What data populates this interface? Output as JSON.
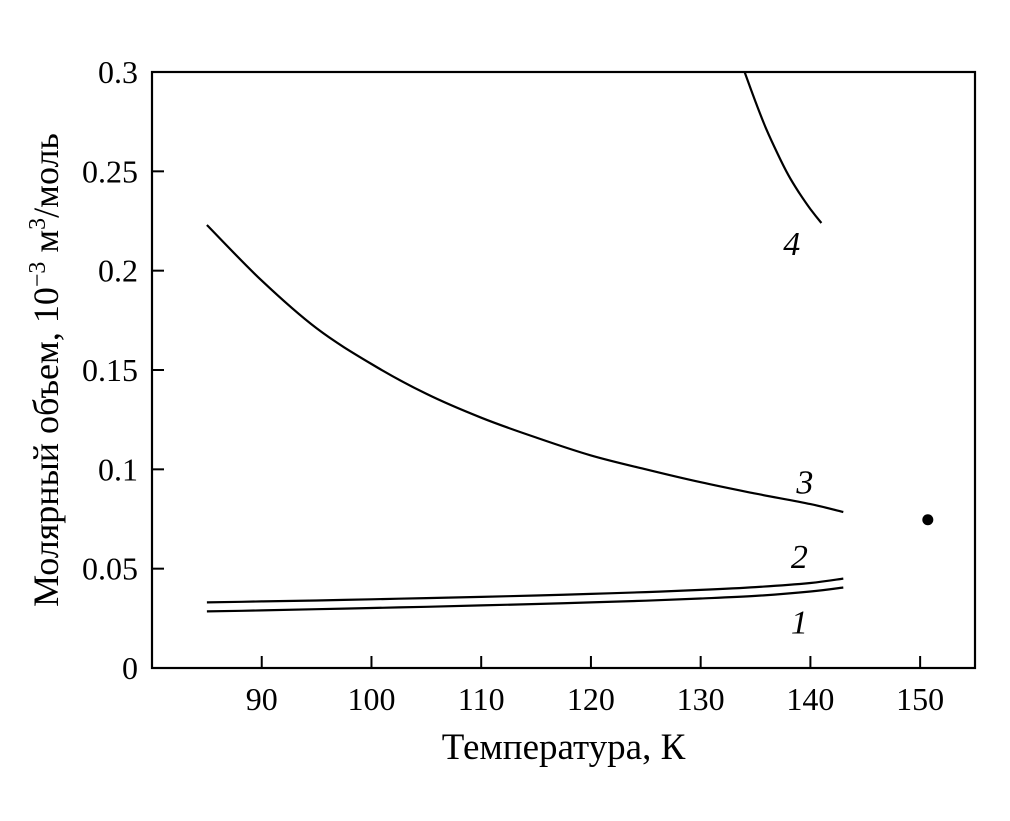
{
  "chart_data": {
    "type": "line",
    "title": "",
    "xlabel": "Температура, К",
    "ylabel": "Молярный объем, 10⁻³ м³/моль",
    "ylabel_parts": {
      "prefix": "Молярный объем, 10",
      "exponent": "−3",
      "unit": " м",
      "unit_exponent": "3",
      "suffix": "/моль"
    },
    "xlim": [
      80,
      155
    ],
    "ylim": [
      0,
      0.3
    ],
    "xticks": [
      90,
      100,
      110,
      120,
      130,
      140,
      150
    ],
    "xtick_labels": [
      "90",
      "100",
      "110",
      "120",
      "130",
      "140",
      "150"
    ],
    "yticks": [
      0,
      0.05,
      0.1,
      0.15,
      0.2,
      0.25,
      0.3
    ],
    "ytick_labels": [
      "0",
      "0.05",
      "0.1",
      "0.15",
      "0.2",
      "0.25",
      "0.3"
    ],
    "grid": false,
    "series": [
      {
        "name": "1",
        "label": "1",
        "x": [
          85,
          90,
          95,
          100,
          105,
          110,
          115,
          120,
          125,
          130,
          135,
          140,
          143
        ],
        "y": [
          0.0285,
          0.029,
          0.0296,
          0.0302,
          0.0308,
          0.0315,
          0.0322,
          0.033,
          0.0339,
          0.035,
          0.0363,
          0.0385,
          0.0405
        ],
        "label_pos": {
          "x": 139.0,
          "y": 0.0235
        }
      },
      {
        "name": "2",
        "label": "2",
        "x": [
          85,
          90,
          95,
          100,
          105,
          110,
          115,
          120,
          125,
          130,
          135,
          140,
          143
        ],
        "y": [
          0.033,
          0.0335,
          0.034,
          0.0346,
          0.0352,
          0.0358,
          0.0365,
          0.0373,
          0.0382,
          0.0393,
          0.0407,
          0.0428,
          0.045
        ],
        "label_pos": {
          "x": 139.0,
          "y": 0.0565
        }
      },
      {
        "name": "3",
        "label": "3",
        "x": [
          85,
          90,
          95,
          100,
          105,
          110,
          115,
          120,
          125,
          130,
          135,
          140,
          143
        ],
        "y": [
          0.223,
          0.195,
          0.171,
          0.153,
          0.138,
          0.126,
          0.116,
          0.107,
          0.1,
          0.0935,
          0.0878,
          0.0825,
          0.0785
        ],
        "label_pos": {
          "x": 139.5,
          "y": 0.094
        }
      },
      {
        "name": "4",
        "label": "4",
        "x": [
          134,
          135,
          136,
          137,
          138,
          139,
          140,
          141
        ],
        "y": [
          0.3,
          0.285,
          0.271,
          0.259,
          0.248,
          0.239,
          0.231,
          0.224
        ],
        "label_pos": {
          "x": 138.3,
          "y": 0.214
        }
      }
    ],
    "points": [
      {
        "name": "critical-point",
        "x": 150.7,
        "y": 0.0746
      }
    ]
  },
  "colors": {
    "line": "#000000",
    "text": "#000000",
    "background": "#ffffff"
  }
}
